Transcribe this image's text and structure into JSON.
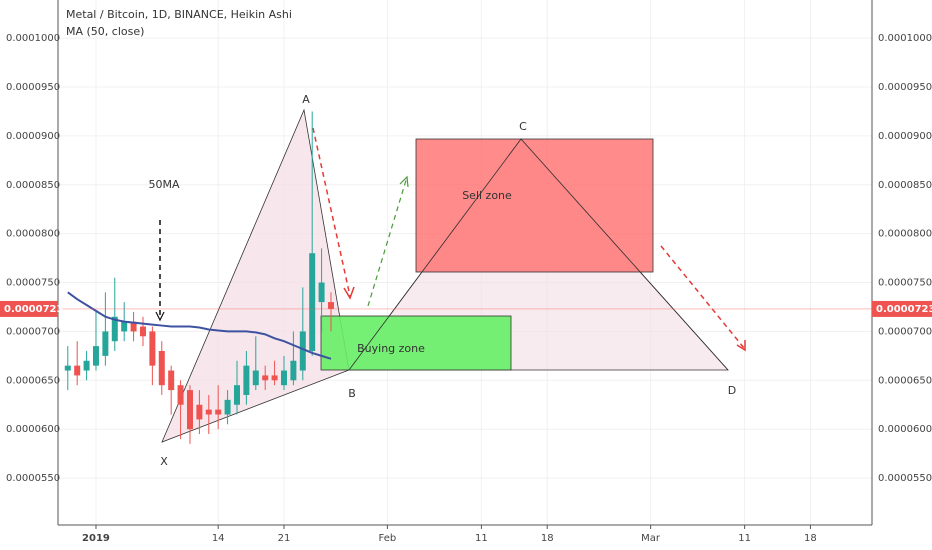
{
  "chart_data": {
    "type": "candlestick",
    "title": "Metal / Bitcoin, 1D, BINANCE, Heikin Ashi",
    "x": [
      -3,
      -2,
      -1,
      0,
      1,
      2,
      3,
      4,
      5,
      6,
      7,
      8,
      9,
      10,
      11,
      12,
      13,
      14,
      15,
      16,
      17,
      18,
      19,
      20,
      21,
      22,
      23,
      24,
      25
    ],
    "open": [
      6.6e-05,
      6.65e-05,
      6.6e-05,
      6.65e-05,
      6.75e-05,
      6.9e-05,
      7e-05,
      7.1e-05,
      7.05e-05,
      7e-05,
      6.8e-05,
      6.6e-05,
      6.45e-05,
      6.4e-05,
      6.25e-05,
      6.2e-05,
      6.2e-05,
      6.15e-05,
      6.25e-05,
      6.35e-05,
      6.45e-05,
      6.55e-05,
      6.55e-05,
      6.45e-05,
      6.5e-05,
      6.6e-05,
      6.8e-05,
      7.3e-05,
      7.3e-05
    ],
    "close": [
      6.65e-05,
      6.55e-05,
      6.7e-05,
      6.85e-05,
      7e-05,
      7.15e-05,
      7.1e-05,
      7e-05,
      6.95e-05,
      6.65e-05,
      6.45e-05,
      6.4e-05,
      6.25e-05,
      6e-05,
      6.1e-05,
      6.15e-05,
      6.15e-05,
      6.3e-05,
      6.45e-05,
      6.65e-05,
      6.6e-05,
      6.5e-05,
      6.5e-05,
      6.6e-05,
      6.7e-05,
      7e-05,
      7.8e-05,
      7.5e-05,
      7.23e-05
    ],
    "high": [
      6.85e-05,
      6.9e-05,
      6.8e-05,
      7.2e-05,
      7.4e-05,
      7.55e-05,
      7.3e-05,
      7.2e-05,
      7.15e-05,
      7.05e-05,
      6.9e-05,
      6.65e-05,
      6.5e-05,
      6.45e-05,
      6.4e-05,
      6.35e-05,
      6.45e-05,
      6.4e-05,
      6.7e-05,
      6.8e-05,
      6.95e-05,
      6.65e-05,
      6.7e-05,
      6.75e-05,
      7e-05,
      7.45e-05,
      9.25e-05,
      7.85e-05,
      7.4e-05
    ],
    "low": [
      6.4e-05,
      6.45e-05,
      6.5e-05,
      6.6e-05,
      6.65e-05,
      6.8e-05,
      6.9e-05,
      6.9e-05,
      6.85e-05,
      6.45e-05,
      6.35e-05,
      6.15e-05,
      5.9e-05,
      5.85e-05,
      5.95e-05,
      5.95e-05,
      6e-05,
      6.05e-05,
      6.15e-05,
      6.25e-05,
      6.4e-05,
      6.4e-05,
      6.45e-05,
      6.4e-05,
      6.45e-05,
      6.5e-05,
      6.75e-05,
      7e-05,
      7e-05
    ],
    "up_color": "#26a69a",
    "down_color": "#ef5350",
    "ma": {
      "name": "MA (50, close)",
      "color": "#3d52a1",
      "values": [
        7.4e-05,
        7.33e-05,
        7.27e-05,
        7.21e-05,
        7.15e-05,
        7.12e-05,
        7.1e-05,
        7.09e-05,
        7.08e-05,
        7.07e-05,
        7.06e-05,
        7.05e-05,
        7.05e-05,
        7.05e-05,
        7.04e-05,
        7.02e-05,
        7.01e-05,
        7e-05,
        7e-05,
        7e-05,
        6.99e-05,
        6.97e-05,
        6.93e-05,
        6.9e-05,
        6.86e-05,
        6.82e-05,
        6.78e-05,
        6.75e-05,
        6.72e-05
      ]
    },
    "last_price": 7.23e-05,
    "ylim": [
      5.02e-05,
      0.0001039
    ],
    "yticks": [
      {
        "value": 5.5e-05,
        "label": "0.0000550"
      },
      {
        "value": 6e-05,
        "label": "0.0000600"
      },
      {
        "value": 6.5e-05,
        "label": "0.0000650"
      },
      {
        "value": 7e-05,
        "label": "0.0000700"
      },
      {
        "value": 7.5e-05,
        "label": "0.0000750"
      },
      {
        "value": 8e-05,
        "label": "0.0000800"
      },
      {
        "value": 8.5e-05,
        "label": "0.0000850"
      },
      {
        "value": 9e-05,
        "label": "0.0000900"
      },
      {
        "value": 9.5e-05,
        "label": "0.0000950"
      },
      {
        "value": 0.0001,
        "label": "0.0001000"
      }
    ],
    "xlim": [
      -4.04,
      82.55
    ],
    "xticks": [
      {
        "value": 0,
        "label": "2019"
      },
      {
        "value": 13,
        "label": "14"
      },
      {
        "value": 20,
        "label": "21"
      },
      {
        "value": 31,
        "label": "Feb"
      },
      {
        "value": 41,
        "label": "11"
      },
      {
        "value": 48,
        "label": "18"
      },
      {
        "value": 59,
        "label": "Mar"
      },
      {
        "value": 69,
        "label": "11"
      },
      {
        "value": 76,
        "label": "18"
      }
    ],
    "grid": true,
    "annotations": {
      "a": "A",
      "b": "B",
      "c": "C",
      "d": "D",
      "x": "X",
      "ma_note": "50MA",
      "sell": "Sell zone",
      "buy": "Buying zone"
    }
  }
}
